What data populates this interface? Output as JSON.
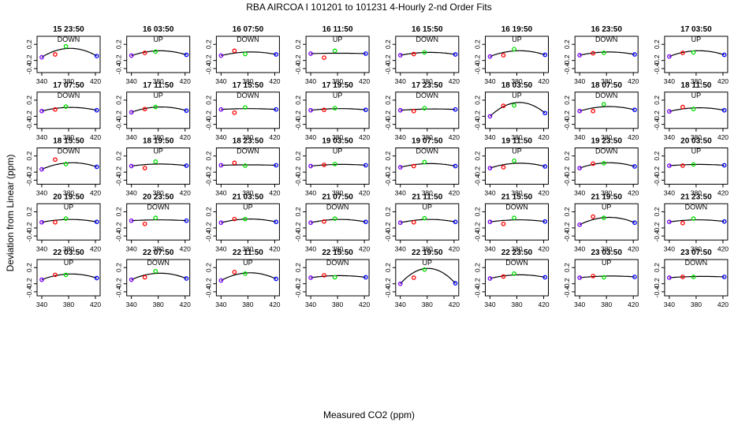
{
  "chart_data": {
    "type": "scatter",
    "title": "RBA   AIRCOA I   101201 to 101231   4-Hourly 2-nd Order Fits",
    "xlabel": "Measured CO2 (ppm)",
    "ylabel": "Deviation from Linear (ppm)",
    "xlim": [
      333,
      427
    ],
    "ylim": [
      -0.5,
      0.4
    ],
    "x_ticks": [
      "340",
      "380",
      "420"
    ],
    "y_ticks": [
      "0.2",
      "-0.2",
      "-0.4"
    ],
    "grid": false,
    "point_x": [
      340,
      360,
      376,
      422
    ],
    "point_colors": [
      "#7a00ff",
      "#ff0000",
      "#00dd00",
      "#0000ff"
    ],
    "curve_color": "#000000",
    "panels": [
      {
        "title": "15 23:50",
        "mode": "DOWN",
        "points": [
          -0.12,
          -0.05,
          0.15,
          -0.09
        ],
        "curve": [
          -0.12,
          0.1,
          -0.09
        ]
      },
      {
        "title": "16 03:50",
        "mode": "UP",
        "points": [
          -0.08,
          -0.01,
          0.02,
          -0.06
        ],
        "curve": [
          -0.08,
          0.04,
          -0.06
        ]
      },
      {
        "title": "16 07:50",
        "mode": "DOWN",
        "points": [
          -0.08,
          0.04,
          -0.04,
          -0.05
        ],
        "curve": [
          -0.08,
          0.01,
          -0.05
        ]
      },
      {
        "title": "16 11:50",
        "mode": "UP",
        "points": [
          -0.03,
          -0.13,
          0.04,
          -0.03
        ],
        "curve": [
          -0.03,
          -0.02,
          -0.03
        ]
      },
      {
        "title": "16 15:50",
        "mode": "DOWN",
        "points": [
          -0.07,
          -0.04,
          0.0,
          -0.05
        ],
        "curve": [
          -0.07,
          0.0,
          -0.05
        ]
      },
      {
        "title": "16 19:50",
        "mode": "UP",
        "points": [
          -0.1,
          -0.07,
          0.08,
          -0.06
        ],
        "curve": [
          -0.1,
          0.04,
          -0.06
        ]
      },
      {
        "title": "16 23:50",
        "mode": "DOWN",
        "points": [
          -0.07,
          -0.02,
          -0.01,
          -0.05
        ],
        "curve": [
          -0.07,
          0.01,
          -0.05
        ]
      },
      {
        "title": "17 03:50",
        "mode": "UP",
        "points": [
          -0.1,
          -0.01,
          0.0,
          -0.06
        ],
        "curve": [
          -0.1,
          0.04,
          -0.06
        ]
      },
      {
        "title": "17 07:50",
        "mode": "DOWN",
        "points": [
          -0.07,
          -0.03,
          0.04,
          -0.05
        ],
        "curve": [
          -0.07,
          0.02,
          -0.05
        ]
      },
      {
        "title": "17 11:50",
        "mode": "UP",
        "points": [
          -0.1,
          -0.02,
          0.03,
          -0.06
        ],
        "curve": [
          -0.1,
          0.03,
          -0.06
        ]
      },
      {
        "title": "17 15:50",
        "mode": "DOWN",
        "points": [
          -0.03,
          -0.11,
          0.02,
          -0.03
        ],
        "curve": [
          -0.03,
          -0.01,
          -0.03
        ]
      },
      {
        "title": "17 19:50",
        "mode": "UP",
        "points": [
          -0.05,
          -0.04,
          0.0,
          -0.04
        ],
        "curve": [
          -0.05,
          -0.01,
          -0.04
        ]
      },
      {
        "title": "17 23:50",
        "mode": "DOWN",
        "points": [
          -0.05,
          -0.07,
          0.0,
          -0.03
        ],
        "curve": [
          -0.05,
          -0.02,
          -0.03
        ]
      },
      {
        "title": "18 03:50",
        "mode": "UP",
        "points": [
          -0.2,
          0.06,
          0.07,
          -0.12
        ],
        "curve": [
          -0.2,
          0.14,
          -0.12
        ]
      },
      {
        "title": "18 07:50",
        "mode": "DOWN",
        "points": [
          -0.07,
          -0.07,
          0.1,
          -0.04
        ],
        "curve": [
          -0.07,
          0.04,
          -0.04
        ]
      },
      {
        "title": "18 11:50",
        "mode": "UP",
        "points": [
          -0.08,
          0.03,
          -0.02,
          -0.05
        ],
        "curve": [
          -0.08,
          0.01,
          -0.05
        ]
      },
      {
        "title": "18 15:50",
        "mode": "DOWN",
        "points": [
          -0.13,
          0.11,
          0.0,
          -0.07
        ],
        "curve": [
          -0.13,
          0.03,
          -0.07
        ]
      },
      {
        "title": "18 19:50",
        "mode": "UP",
        "points": [
          -0.05,
          -0.1,
          0.06,
          -0.04
        ],
        "curve": [
          -0.05,
          0.0,
          -0.04
        ]
      },
      {
        "title": "18 23:50",
        "mode": "DOWN",
        "points": [
          -0.03,
          0.03,
          -0.04,
          -0.03
        ],
        "curve": [
          -0.03,
          -0.02,
          -0.03
        ]
      },
      {
        "title": "19 03:50",
        "mode": "UP",
        "points": [
          -0.05,
          -0.02,
          0.0,
          -0.03
        ],
        "curve": [
          -0.05,
          -0.01,
          -0.03
        ]
      },
      {
        "title": "19 07:50",
        "mode": "DOWN",
        "points": [
          -0.08,
          -0.05,
          0.05,
          -0.05
        ],
        "curve": [
          -0.08,
          0.01,
          -0.05
        ]
      },
      {
        "title": "19 11:50",
        "mode": "UP",
        "points": [
          -0.1,
          -0.08,
          0.08,
          -0.06
        ],
        "curve": [
          -0.1,
          0.02,
          -0.06
        ]
      },
      {
        "title": "19 23:50",
        "mode": "DOWN",
        "points": [
          -0.1,
          0.01,
          0.02,
          -0.06
        ],
        "curve": [
          -0.1,
          0.03,
          -0.06
        ]
      },
      {
        "title": "20 03:50",
        "mode": "UP",
        "points": [
          -0.04,
          -0.04,
          -0.01,
          -0.03
        ],
        "curve": [
          -0.04,
          -0.01,
          -0.03
        ]
      },
      {
        "title": "20 19:50",
        "mode": "UP",
        "points": [
          -0.06,
          -0.06,
          0.03,
          -0.05
        ],
        "curve": [
          -0.06,
          0.01,
          -0.05
        ]
      },
      {
        "title": "20 23:50",
        "mode": "DOWN",
        "points": [
          -0.02,
          -0.1,
          0.05,
          -0.02
        ],
        "curve": [
          -0.02,
          0.0,
          -0.02
        ]
      },
      {
        "title": "21 03:50",
        "mode": "UP",
        "points": [
          -0.07,
          0.02,
          0.02,
          -0.05
        ],
        "curve": [
          -0.07,
          0.02,
          -0.05
        ]
      },
      {
        "title": "21 07:50",
        "mode": "DOWN",
        "points": [
          -0.07,
          -0.04,
          0.03,
          -0.05
        ],
        "curve": [
          -0.07,
          0.01,
          -0.05
        ]
      },
      {
        "title": "21 11:50",
        "mode": "UP",
        "points": [
          -0.07,
          -0.06,
          0.04,
          -0.05
        ],
        "curve": [
          -0.07,
          0.01,
          -0.05
        ]
      },
      {
        "title": "21 15:50",
        "mode": "DOWN",
        "points": [
          -0.05,
          -0.1,
          0.05,
          -0.04
        ],
        "curve": [
          -0.05,
          0.0,
          -0.04
        ]
      },
      {
        "title": "21 19:50",
        "mode": "UP",
        "points": [
          -0.12,
          0.08,
          0.05,
          -0.07
        ],
        "curve": [
          -0.12,
          0.06,
          -0.07
        ]
      },
      {
        "title": "21 23:50",
        "mode": "DOWN",
        "points": [
          -0.05,
          -0.08,
          0.03,
          -0.04
        ],
        "curve": [
          -0.05,
          0.0,
          -0.04
        ]
      },
      {
        "title": "22 03:50",
        "mode": "UP",
        "points": [
          -0.1,
          0.02,
          0.02,
          -0.06
        ],
        "curve": [
          -0.1,
          0.04,
          -0.06
        ]
      },
      {
        "title": "22 07:50",
        "mode": "DOWN",
        "points": [
          -0.1,
          -0.04,
          0.11,
          -0.07
        ],
        "curve": [
          -0.1,
          0.06,
          -0.07
        ]
      },
      {
        "title": "22 11:50",
        "mode": "UP",
        "points": [
          -0.12,
          0.09,
          0.05,
          -0.08
        ],
        "curve": [
          -0.12,
          0.07,
          -0.08
        ]
      },
      {
        "title": "22 15:50",
        "mode": "DOWN",
        "points": [
          -0.05,
          0.01,
          -0.04,
          -0.04
        ],
        "curve": [
          -0.05,
          0.0,
          -0.04
        ]
      },
      {
        "title": "22 19:50",
        "mode": "UP",
        "points": [
          -0.2,
          -0.05,
          0.15,
          -0.19
        ],
        "curve": [
          -0.2,
          0.18,
          -0.19
        ]
      },
      {
        "title": "22 23:50",
        "mode": "DOWN",
        "points": [
          -0.07,
          -0.02,
          0.05,
          -0.04
        ],
        "curve": [
          -0.07,
          0.02,
          -0.04
        ]
      },
      {
        "title": "23 03:50",
        "mode": "UP",
        "points": [
          -0.05,
          -0.01,
          -0.04,
          -0.03
        ],
        "curve": [
          -0.05,
          -0.01,
          -0.03
        ]
      },
      {
        "title": "23 07:50",
        "mode": "DOWN",
        "points": [
          -0.05,
          -0.03,
          -0.03,
          -0.03
        ],
        "curve": [
          -0.05,
          -0.02,
          -0.03
        ]
      }
    ]
  }
}
